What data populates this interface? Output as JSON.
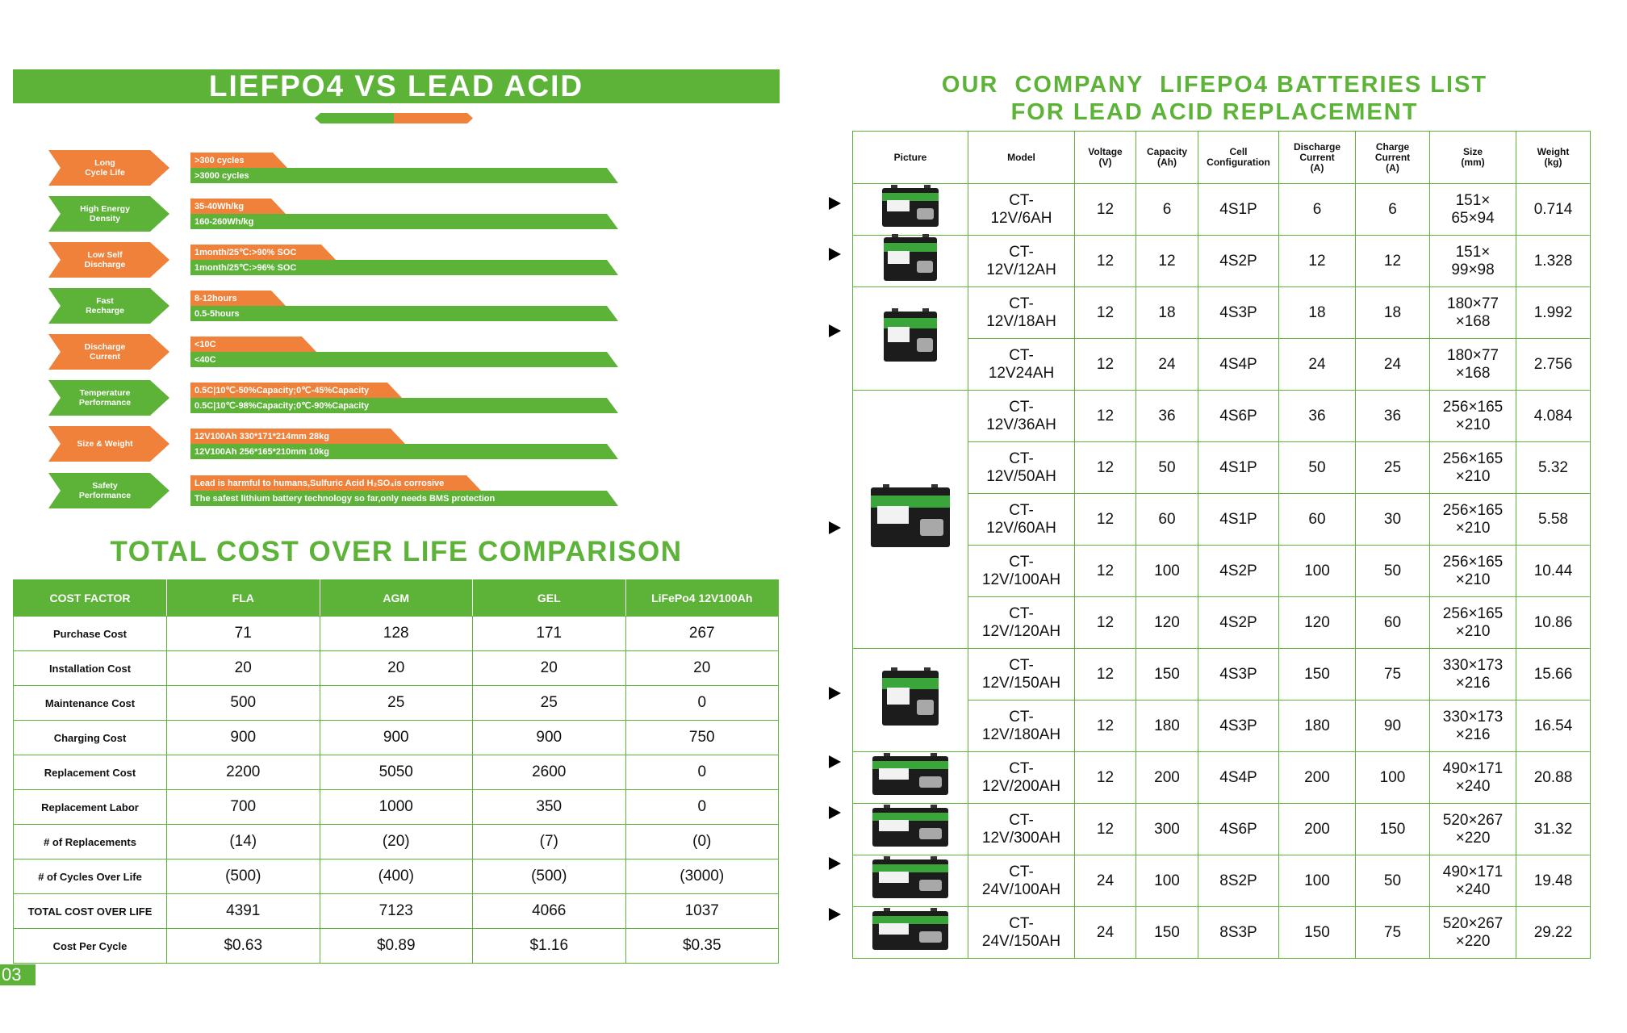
{
  "left": {
    "banner_title": "LIEFPO4 VS LEAD ACID",
    "comparison": [
      {
        "label": "Long\nCycle Life",
        "lead_acid": ">300 cycles",
        "lifepo4": ">3000 cycles"
      },
      {
        "label": "High Energy\nDensity",
        "lead_acid": "35-40Wh/kg",
        "lifepo4": "160-260Wh/kg"
      },
      {
        "label": "Low Self\nDischarge",
        "lead_acid": "1month/25℃:>90% SOC",
        "lifepo4": "1month/25℃:>96% SOC"
      },
      {
        "label": "Fast\nRecharge",
        "lead_acid": "8-12hours",
        "lifepo4": "0.5-5hours"
      },
      {
        "label": "Discharge\nCurrent",
        "lead_acid": "<10C",
        "lifepo4": "<40C"
      },
      {
        "label": "Temperature\nPerformance",
        "lead_acid": "0.5C|10℃-50%Capacity;0℃-45%Capacity",
        "lifepo4": "0.5C|10℃-98%Capacity;0℃-90%Capacity"
      },
      {
        "label": "Size & Weight",
        "lead_acid": "12V100Ah 330*171*214mm 28kg",
        "lifepo4": "12V100Ah 256*165*210mm 10kg"
      },
      {
        "label": "Safety\nPerformance",
        "lead_acid": "Lead is harmful to humans,Sulfuric Acid H₂SO₄is corrosive",
        "lifepo4": "The safest lithium battery technology so far,only needs BMS protection"
      }
    ],
    "cost_title": "TOTAL COST OVER LIFE COMPARISON",
    "cost_headers": [
      "COST FACTOR",
      "FLA",
      "AGM",
      "GEL",
      "LiFePo4 12V100Ah"
    ],
    "cost_rows": [
      [
        "Purchase Cost",
        "71",
        "128",
        "171",
        "267"
      ],
      [
        "Installation Cost",
        "20",
        "20",
        "20",
        "20"
      ],
      [
        "Maintenance Cost",
        "500",
        "25",
        "25",
        "0"
      ],
      [
        "Charging Cost",
        "900",
        "900",
        "900",
        "750"
      ],
      [
        "Replacement Cost",
        "2200",
        "5050",
        "2600",
        "0"
      ],
      [
        "Replacement Labor",
        "700",
        "1000",
        "350",
        "0"
      ],
      [
        "# of Replacements",
        "(14)",
        "(20)",
        "(7)",
        "(0)"
      ],
      [
        "# of Cycles Over Life",
        "(500)",
        "(400)",
        "(500)",
        "(3000)"
      ],
      [
        "TOTAL COST OVER LIFE",
        "4391",
        "7123",
        "4066",
        "1037"
      ],
      [
        "Cost Per Cycle",
        "$0.63",
        "$0.89",
        "$1.16",
        "$0.35"
      ]
    ],
    "page_number": "03"
  },
  "right": {
    "title_line1": "OUR  COMPANY  LIFEPO4 BATTERIES LIST",
    "title_line2": "FOR LEAD ACID REPLACEMENT",
    "headers": [
      "Picture",
      "Model",
      "Voltage\n(V)",
      "Capacity\n(Ah)",
      "Cell\nConfiguration",
      "Discharge\nCurrent\n(A)",
      "Charge\nCurrent\n(A)",
      "Size\n(mm)",
      "Weight\n(kg)"
    ],
    "rows": [
      {
        "model": "CT-\n12V/6AH",
        "voltage": "12",
        "capacity": "6",
        "config": "4S1P",
        "discharge": "6",
        "charge": "6",
        "size": "151×\n65×94",
        "weight": "0.714"
      },
      {
        "model": "CT-\n12V/12AH",
        "voltage": "12",
        "capacity": "12",
        "config": "4S2P",
        "discharge": "12",
        "charge": "12",
        "size": "151×\n99×98",
        "weight": "1.328"
      },
      {
        "model": "CT-\n12V/18AH",
        "voltage": "12",
        "capacity": "18",
        "config": "4S3P",
        "discharge": "18",
        "charge": "18",
        "size": "180×77\n×168",
        "weight": "1.992"
      },
      {
        "model": "CT-\n12V24AH",
        "voltage": "12",
        "capacity": "24",
        "config": "4S4P",
        "discharge": "24",
        "charge": "24",
        "size": "180×77\n×168",
        "weight": "2.756"
      },
      {
        "model": "CT-\n12V/36AH",
        "voltage": "12",
        "capacity": "36",
        "config": "4S6P",
        "discharge": "36",
        "charge": "36",
        "size": "256×165\n×210",
        "weight": "4.084"
      },
      {
        "model": "CT-\n12V/50AH",
        "voltage": "12",
        "capacity": "50",
        "config": "4S1P",
        "discharge": "50",
        "charge": "25",
        "size": "256×165\n×210",
        "weight": "5.32"
      },
      {
        "model": "CT-\n12V/60AH",
        "voltage": "12",
        "capacity": "60",
        "config": "4S1P",
        "discharge": "60",
        "charge": "30",
        "size": "256×165\n×210",
        "weight": "5.58"
      },
      {
        "model": "CT-\n12V/100AH",
        "voltage": "12",
        "capacity": "100",
        "config": "4S2P",
        "discharge": "100",
        "charge": "50",
        "size": "256×165\n×210",
        "weight": "10.44"
      },
      {
        "model": "CT-\n12V/120AH",
        "voltage": "12",
        "capacity": "120",
        "config": "4S2P",
        "discharge": "120",
        "charge": "60",
        "size": "256×165\n×210",
        "weight": "10.86"
      },
      {
        "model": "CT-\n12V/150AH",
        "voltage": "12",
        "capacity": "150",
        "config": "4S3P",
        "discharge": "150",
        "charge": "75",
        "size": "330×173\n×216",
        "weight": "15.66"
      },
      {
        "model": "CT-\n12V/180AH",
        "voltage": "12",
        "capacity": "180",
        "config": "4S3P",
        "discharge": "180",
        "charge": "90",
        "size": "330×173\n×216",
        "weight": "16.54"
      },
      {
        "model": "CT-\n12V/200AH",
        "voltage": "12",
        "capacity": "200",
        "config": "4S4P",
        "discharge": "200",
        "charge": "100",
        "size": "490×171\n×240",
        "weight": "20.88"
      },
      {
        "model": "CT-\n12V/300AH",
        "voltage": "12",
        "capacity": "300",
        "config": "4S6P",
        "discharge": "200",
        "charge": "150",
        "size": "520×267\n×220",
        "weight": "31.32"
      },
      {
        "model": "CT-\n24V/100AH",
        "voltage": "24",
        "capacity": "100",
        "config": "8S2P",
        "discharge": "100",
        "charge": "50",
        "size": "490×171\n×240",
        "weight": "19.48"
      },
      {
        "model": "CT-\n24V/150AH",
        "voltage": "24",
        "capacity": "150",
        "config": "8S3P",
        "discharge": "150",
        "charge": "75",
        "size": "520×267\n×220",
        "weight": "29.22"
      }
    ]
  },
  "colors": {
    "green": "#5cb338",
    "orange": "#f0813b"
  }
}
